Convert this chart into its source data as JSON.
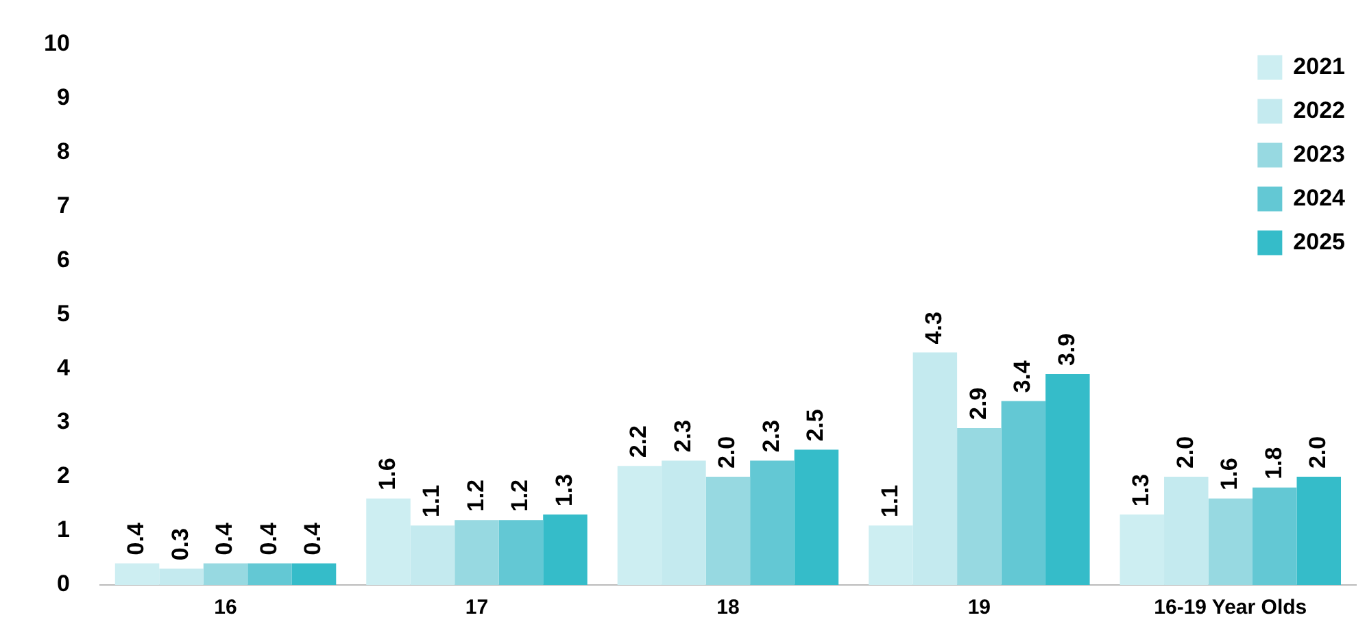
{
  "chart_data": {
    "type": "bar",
    "categories": [
      "16",
      "17",
      "18",
      "19",
      "16-19 Year Olds"
    ],
    "series": [
      {
        "name": "2021",
        "color": "#cdeef2",
        "values": [
          0.4,
          1.6,
          2.2,
          1.1,
          1.3
        ],
        "value_labels": [
          "0.4",
          "1.6",
          "2.2",
          "1.1",
          "1.3"
        ]
      },
      {
        "name": "2022",
        "color": "#c4eaef",
        "values": [
          0.3,
          1.1,
          2.3,
          4.3,
          2.0
        ],
        "value_labels": [
          "0.3",
          "1.1",
          "2.3",
          "4.3",
          "2.0"
        ]
      },
      {
        "name": "2023",
        "color": "#97d9e1",
        "values": [
          0.4,
          1.2,
          2.0,
          2.9,
          1.6
        ],
        "value_labels": [
          "0.4",
          "1.2",
          "2.0",
          "2.9",
          "1.6"
        ]
      },
      {
        "name": "2024",
        "color": "#63c8d4",
        "values": [
          0.4,
          1.2,
          2.3,
          3.4,
          1.8
        ],
        "value_labels": [
          "0.4",
          "1.2",
          "2.3",
          "3.4",
          "1.8"
        ]
      },
      {
        "name": "2025",
        "color": "#35bcc9",
        "values": [
          0.4,
          1.3,
          2.5,
          3.9,
          2.0
        ],
        "value_labels": [
          "0.4",
          "1.3",
          "2.5",
          "3.9",
          "2.0"
        ]
      }
    ],
    "ylim": [
      0,
      10
    ],
    "yticks": [
      0,
      1,
      2,
      3,
      4,
      5,
      6,
      7,
      8,
      9,
      10
    ],
    "grid": false,
    "legend": "top right"
  }
}
